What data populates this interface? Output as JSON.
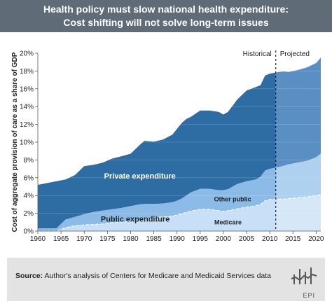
{
  "header": {
    "title_line1": "Health policy must slow national health expenditure:",
    "title_line2": "Cost shifting will not solve long-term issues"
  },
  "footer": {
    "source_label": "Source:",
    "source_text": "Author's analysis of Centers for Medicare and Medicaid Services data",
    "logo_text": "EPI"
  },
  "colors": {
    "private": "#2e6da4",
    "private_projected": "#5a8fc4",
    "public": "#8bbbe6",
    "public_projected": "#aed1f0",
    "medicare": "#c7e0f7",
    "medicare_projected": "#d6e8f8",
    "banner": "#5f6b77",
    "divider": "#000000"
  },
  "chart_data": {
    "type": "area",
    "stacked": true,
    "xlabel": "",
    "ylabel": "Cost of aggregate provision of care as a share of GDP",
    "xlim": [
      1960,
      2021
    ],
    "ylim": [
      0,
      20
    ],
    "x_ticks": [
      "1960",
      "1965",
      "1970",
      "1975",
      "1980",
      "1985",
      "1990",
      "1995",
      "2000",
      "2005",
      "2010",
      "2015",
      "2020"
    ],
    "y_ticks": [
      "0%",
      "2%",
      "4%",
      "6%",
      "8%",
      "10%",
      "12%",
      "14%",
      "16%",
      "18%",
      "20%"
    ],
    "divider_x": 2011.3,
    "period_labels": {
      "historical": "Historical",
      "projected": "Projected"
    },
    "annotations": {
      "private": "Private expenditure",
      "public": "Public expenditure",
      "other_public": "Other public",
      "medicare": "Medicare"
    },
    "x": [
      1960,
      1962,
      1964,
      1966,
      1968,
      1970,
      1972,
      1974,
      1976,
      1978,
      1980,
      1982,
      1983,
      1985,
      1987,
      1989,
      1990,
      1991,
      1992,
      1993,
      1995,
      1997,
      1999,
      2000,
      2001,
      2002,
      2003,
      2005,
      2007,
      2008,
      2009,
      2010,
      2011,
      2012,
      2013,
      2014,
      2016,
      2018,
      2020,
      2021
    ],
    "series": [
      {
        "name": "Medicare",
        "values": [
          0,
          0,
          0,
          0.4,
          0.6,
          0.7,
          0.75,
          0.8,
          0.95,
          1.0,
          1.1,
          1.3,
          1.4,
          1.5,
          1.6,
          1.7,
          1.8,
          1.95,
          2.1,
          2.25,
          2.45,
          2.45,
          2.3,
          2.2,
          2.3,
          2.4,
          2.5,
          2.7,
          2.85,
          3.0,
          3.4,
          3.55,
          3.6,
          3.6,
          3.6,
          3.65,
          3.75,
          3.85,
          4.0,
          4.1
        ]
      },
      {
        "name": "Other public",
        "values": [
          0.3,
          0.3,
          0.3,
          0.9,
          1.0,
          1.2,
          1.4,
          1.5,
          1.5,
          1.6,
          1.7,
          1.7,
          1.65,
          1.55,
          1.5,
          1.55,
          1.6,
          1.7,
          1.9,
          2.1,
          2.3,
          2.3,
          2.3,
          2.4,
          2.4,
          2.6,
          2.8,
          2.9,
          2.95,
          3.1,
          3.4,
          3.45,
          3.5,
          3.6,
          3.75,
          3.85,
          3.95,
          4.05,
          4.3,
          4.6
        ]
      },
      {
        "name": "Private expenditure",
        "values": [
          4.9,
          5.1,
          5.3,
          4.5,
          4.7,
          5.4,
          5.3,
          5.4,
          5.7,
          5.8,
          5.9,
          6.7,
          7.1,
          7.0,
          7.2,
          7.6,
          8.1,
          8.5,
          8.6,
          8.5,
          8.8,
          8.8,
          8.8,
          8.5,
          8.7,
          9.1,
          9.5,
          10.2,
          10.4,
          10.3,
          10.7,
          10.7,
          10.7,
          10.7,
          10.6,
          10.4,
          10.4,
          10.5,
          10.6,
          10.8
        ]
      }
    ]
  }
}
